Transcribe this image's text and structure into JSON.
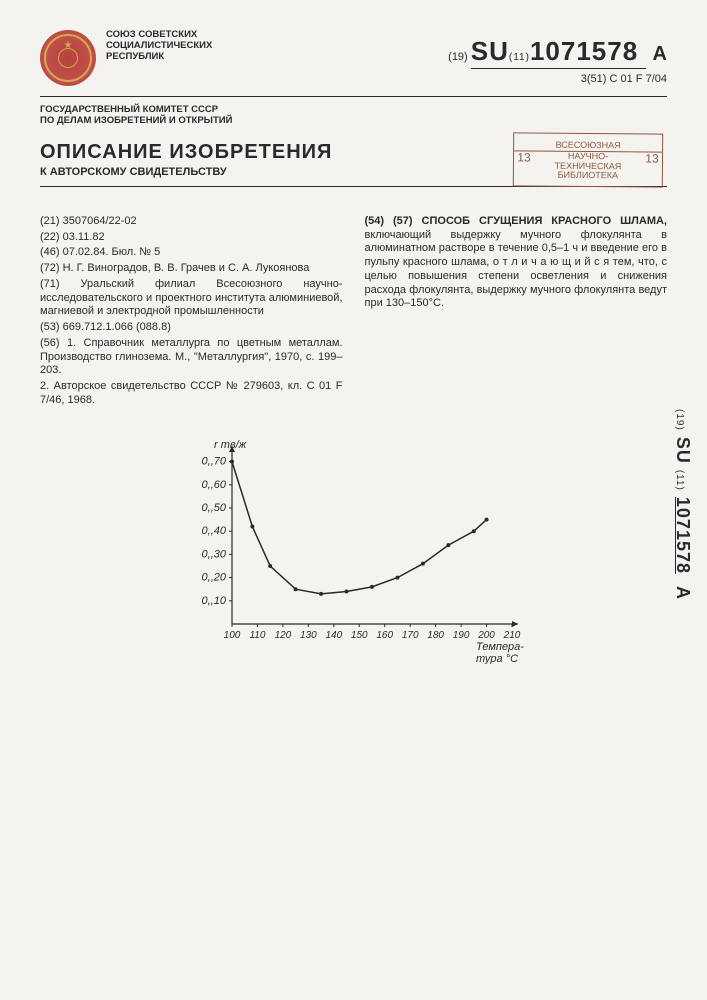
{
  "header": {
    "union_line1": "СОЮЗ СОВЕТСКИХ",
    "union_line2": "СОЦИАЛИСТИЧЕСКИХ",
    "union_line3": "РЕСПУБЛИК",
    "pub_prefix": "(19)",
    "pub_country": "SU",
    "pub_midfix": "(11)",
    "pub_number": "1071578",
    "pub_suffix": "A",
    "ipc_prefix": "3(51)",
    "ipc_code": "C 01 F 7/04",
    "committee_line1": "ГОСУДАРСТВЕННЫЙ КОМИТЕТ СССР",
    "committee_line2": "ПО ДЕЛАМ ИЗОБРЕТЕНИЙ И ОТКРЫТИЙ"
  },
  "title": {
    "main": "ОПИСАНИЕ ИЗОБРЕТЕНИЯ",
    "sub": "К АВТОРСКОМУ СВИДЕТЕЛЬСТВУ"
  },
  "stamp": {
    "line1": "ВСЕСОЮЗНАЯ",
    "line2": "НАУЧНО-",
    "line3": "ТЕХНИЧЕСКАЯ",
    "line4": "БИБЛИОТЕКА",
    "num": "13"
  },
  "biblio": {
    "f21": "(21) 3507064/22-02",
    "f22": "(22) 03.11.82",
    "f46": "(46) 07.02.84. Бюл. № 5",
    "f72": "(72) Н. Г. Виноградов, В. В. Грачев и С. А. Лукоянова",
    "f71": "(71) Уральский филиал Всесоюзного научно-исследовательского и проектного института алюминиевой, магниевой и электродной промышленности",
    "f53": "(53) 669.712.1.066 (088.8)",
    "f56a": "(56) 1. Справочник металлурга по цветным металлам. Производство глинозема. М., \"Металлургия\", 1970, с. 199–203.",
    "f56b": "2. Авторское свидетельство СССР № 279603, кл. C 01 F 7/46, 1968."
  },
  "abstract": {
    "head": "(54) (57) СПОСОБ СГУЩЕНИЯ КРАСНОГО ШЛАМА,",
    "body": "включающий выдержку мучного флокулянта в алюминатном растворе в течение 0,5–1 ч и введение его в пульпу красного шлама, о т л и ч а ю щ и й с я тем, что, с целью повышения степени осветления и снижения расхода флокулянта, выдержку мучного флокулянта ведут при 130–150°С."
  },
  "chart": {
    "type": "line",
    "ylabel": "r тв/ж",
    "xlabel": "Температура °C",
    "x_ticks": [
      100,
      110,
      120,
      130,
      140,
      150,
      160,
      170,
      180,
      190,
      200,
      210
    ],
    "y_ticks": [
      0.1,
      0.2,
      0.3,
      0.4,
      0.5,
      0.6,
      0.7
    ],
    "xlim": [
      100,
      210
    ],
    "ylim": [
      0,
      0.75
    ],
    "points": [
      {
        "x": 100,
        "y": 0.7
      },
      {
        "x": 108,
        "y": 0.42
      },
      {
        "x": 115,
        "y": 0.25
      },
      {
        "x": 125,
        "y": 0.15
      },
      {
        "x": 135,
        "y": 0.13
      },
      {
        "x": 145,
        "y": 0.14
      },
      {
        "x": 155,
        "y": 0.16
      },
      {
        "x": 165,
        "y": 0.2
      },
      {
        "x": 175,
        "y": 0.26
      },
      {
        "x": 185,
        "y": 0.34
      },
      {
        "x": 195,
        "y": 0.4
      },
      {
        "x": 200,
        "y": 0.45
      }
    ],
    "line_color": "#2a2a2a",
    "line_width": 1.5,
    "marker_radius": 2.0,
    "font_size": 11,
    "axis_color": "#2a2a2a",
    "background": "#f5f3ef"
  },
  "side": {
    "prefix": "(19)",
    "country": "SU",
    "midfix": "(11)",
    "number": "1071578",
    "suffix": "A"
  }
}
